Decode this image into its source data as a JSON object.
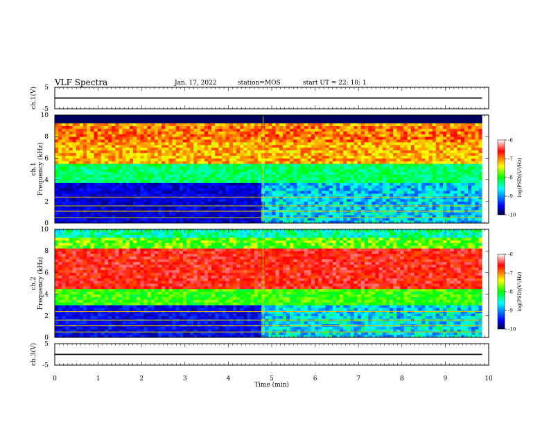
{
  "header": {
    "title": "VLF Spectra",
    "date": "Jan. 17, 2022",
    "station": "station=MOS",
    "start_ut": "start UT =  22: 10: 1"
  },
  "chart_data": [
    {
      "type": "line",
      "name": "ch1-voltage",
      "ylabel": "ch.1(V)",
      "ylim": [
        -5,
        5
      ],
      "ytick_labels": [
        "5",
        "-5"
      ],
      "xlim": [
        0,
        10
      ],
      "series": [
        {
          "x": [
            0,
            9.85
          ],
          "y": [
            0,
            0
          ]
        }
      ]
    },
    {
      "type": "heatmap",
      "name": "ch1-spectrogram",
      "ylabel": "ch.1\nFrequency (kHz)",
      "ylim": [
        0,
        10
      ],
      "ytick_labels": [
        "0",
        "2",
        "4",
        "6",
        "8",
        "10"
      ],
      "xlim": [
        0,
        9.85
      ],
      "colorbar": {
        "label": "log(PSD)(V²/Hz)",
        "range": [
          -10,
          -6
        ],
        "tick_labels": [
          "-6",
          "-7",
          "-8",
          "-9",
          "-10"
        ]
      },
      "note_change_at_min": 4.8
    },
    {
      "type": "heatmap",
      "name": "ch2-spectrogram",
      "ylabel": "ch.2\nFrequency (kHz)",
      "ylim": [
        0,
        10
      ],
      "ytick_labels": [
        "0",
        "2",
        "4",
        "6",
        "8",
        "10"
      ],
      "xlim": [
        0,
        9.85
      ],
      "colorbar": {
        "label": "log(PSD)(V²/Hz)",
        "range": [
          -10,
          -6
        ],
        "tick_labels": [
          "-6",
          "-7",
          "-8",
          "-9",
          "-10"
        ]
      },
      "note_change_at_min": 4.8
    },
    {
      "type": "line",
      "name": "ch3-voltage",
      "ylabel": "ch.3(V)",
      "ylim": [
        -5,
        5
      ],
      "ytick_labels": [
        "5",
        "-5"
      ],
      "xlim": [
        0,
        10
      ],
      "series": [
        {
          "x": [
            0,
            9.85
          ],
          "y": [
            0,
            0
          ]
        }
      ]
    }
  ],
  "xaxis": {
    "label": "Time (min)",
    "range": [
      0,
      10
    ],
    "tick_labels": [
      "0",
      "1",
      "2",
      "3",
      "4",
      "5",
      "6",
      "7",
      "8",
      "9",
      "10"
    ]
  }
}
